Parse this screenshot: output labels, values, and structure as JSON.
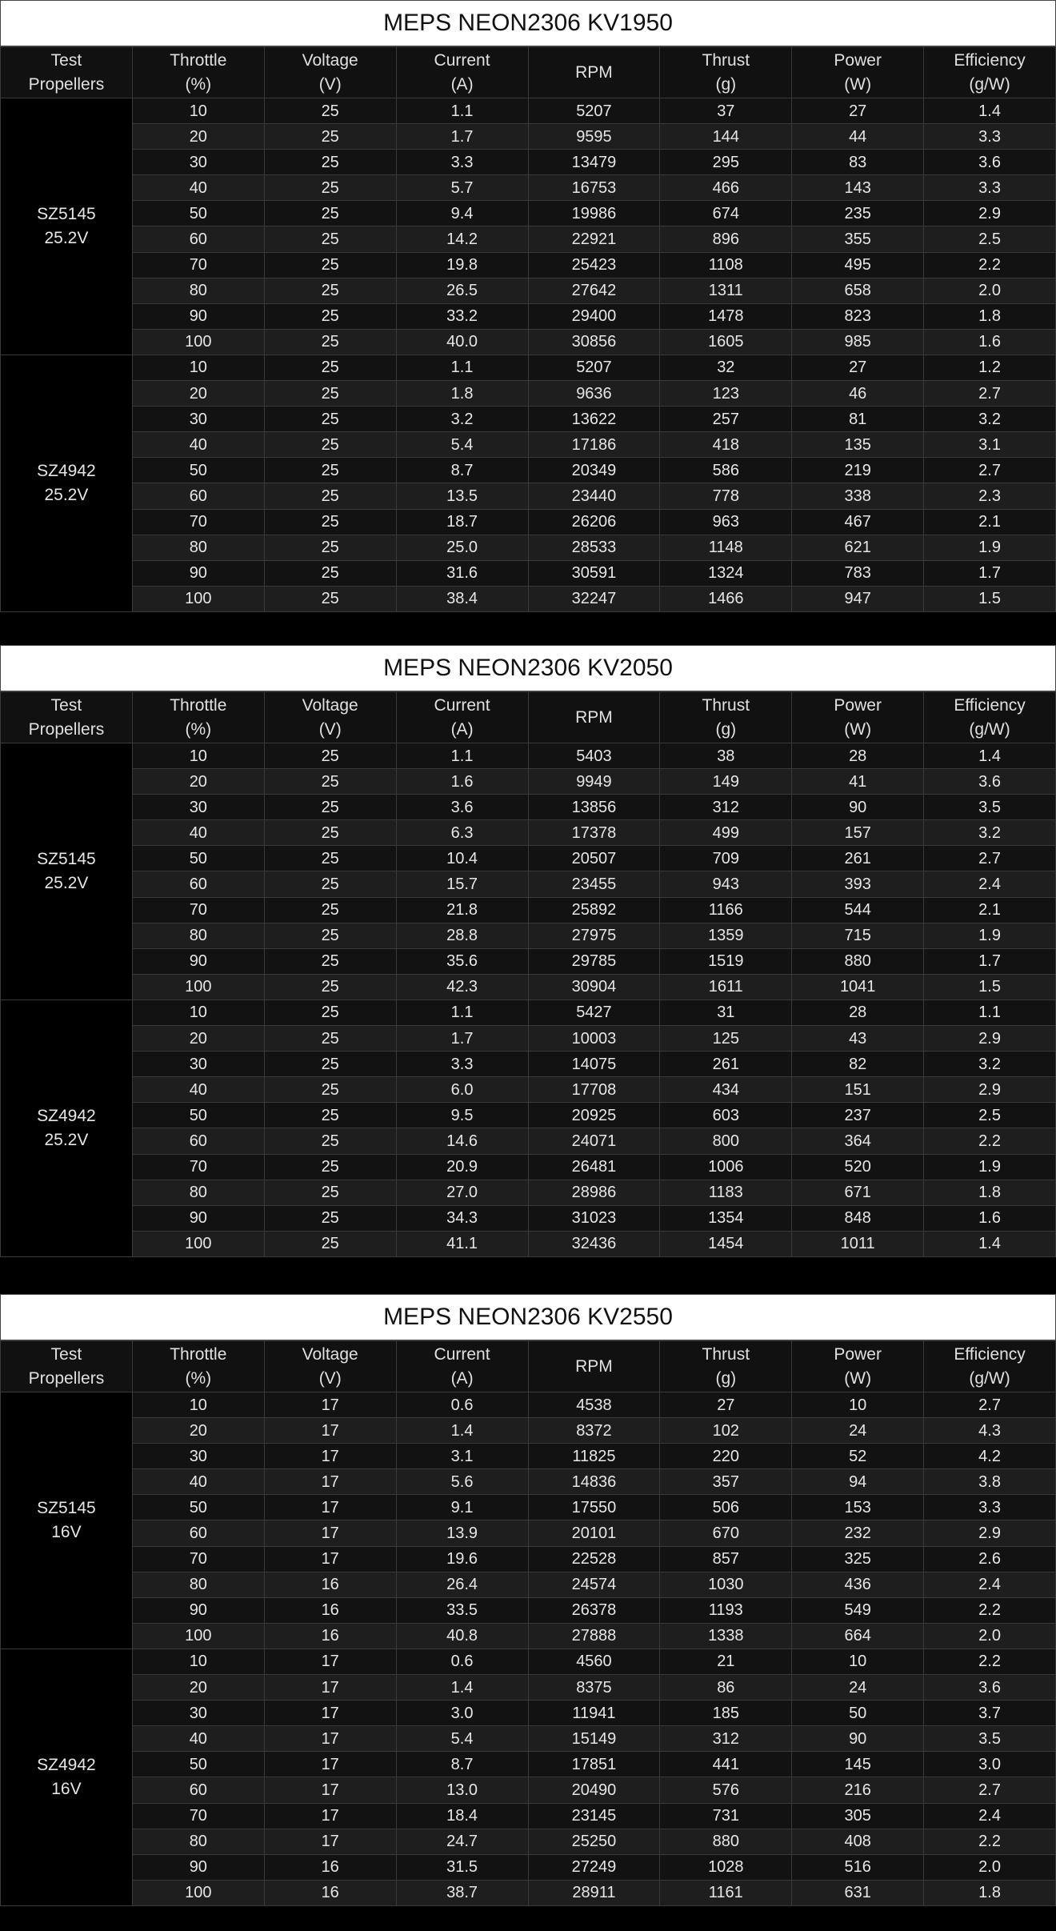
{
  "headers": [
    [
      "Test",
      "Propellers"
    ],
    [
      "Throttle",
      "(%)"
    ],
    [
      "Voltage",
      "(V)"
    ],
    [
      "Current",
      "(A)"
    ],
    [
      "RPM",
      ""
    ],
    [
      "Thrust",
      "(g)"
    ],
    [
      "Power",
      "(W)"
    ],
    [
      "Efficiency",
      "(g/W)"
    ]
  ],
  "tables": [
    {
      "title": "MEPS NEON2306 KV1950",
      "groups": [
        {
          "prop": [
            "SZ5145",
            "25.2V"
          ],
          "rows": [
            [
              "10",
              "25",
              "1.1",
              "5207",
              "37",
              "27",
              "1.4"
            ],
            [
              "20",
              "25",
              "1.7",
              "9595",
              "144",
              "44",
              "3.3"
            ],
            [
              "30",
              "25",
              "3.3",
              "13479",
              "295",
              "83",
              "3.6"
            ],
            [
              "40",
              "25",
              "5.7",
              "16753",
              "466",
              "143",
              "3.3"
            ],
            [
              "50",
              "25",
              "9.4",
              "19986",
              "674",
              "235",
              "2.9"
            ],
            [
              "60",
              "25",
              "14.2",
              "22921",
              "896",
              "355",
              "2.5"
            ],
            [
              "70",
              "25",
              "19.8",
              "25423",
              "1108",
              "495",
              "2.2"
            ],
            [
              "80",
              "25",
              "26.5",
              "27642",
              "1311",
              "658",
              "2.0"
            ],
            [
              "90",
              "25",
              "33.2",
              "29400",
              "1478",
              "823",
              "1.8"
            ],
            [
              "100",
              "25",
              "40.0",
              "30856",
              "1605",
              "985",
              "1.6"
            ]
          ]
        },
        {
          "prop": [
            "SZ4942",
            "25.2V"
          ],
          "rows": [
            [
              "10",
              "25",
              "1.1",
              "5207",
              "32",
              "27",
              "1.2"
            ],
            [
              "20",
              "25",
              "1.8",
              "9636",
              "123",
              "46",
              "2.7"
            ],
            [
              "30",
              "25",
              "3.2",
              "13622",
              "257",
              "81",
              "3.2"
            ],
            [
              "40",
              "25",
              "5.4",
              "17186",
              "418",
              "135",
              "3.1"
            ],
            [
              "50",
              "25",
              "8.7",
              "20349",
              "586",
              "219",
              "2.7"
            ],
            [
              "60",
              "25",
              "13.5",
              "23440",
              "778",
              "338",
              "2.3"
            ],
            [
              "70",
              "25",
              "18.7",
              "26206",
              "963",
              "467",
              "2.1"
            ],
            [
              "80",
              "25",
              "25.0",
              "28533",
              "1148",
              "621",
              "1.9"
            ],
            [
              "90",
              "25",
              "31.6",
              "30591",
              "1324",
              "783",
              "1.7"
            ],
            [
              "100",
              "25",
              "38.4",
              "32247",
              "1466",
              "947",
              "1.5"
            ]
          ]
        }
      ]
    },
    {
      "title": "MEPS NEON2306 KV2050",
      "groups": [
        {
          "prop": [
            "SZ5145",
            "25.2V"
          ],
          "rows": [
            [
              "10",
              "25",
              "1.1",
              "5403",
              "38",
              "28",
              "1.4"
            ],
            [
              "20",
              "25",
              "1.6",
              "9949",
              "149",
              "41",
              "3.6"
            ],
            [
              "30",
              "25",
              "3.6",
              "13856",
              "312",
              "90",
              "3.5"
            ],
            [
              "40",
              "25",
              "6.3",
              "17378",
              "499",
              "157",
              "3.2"
            ],
            [
              "50",
              "25",
              "10.4",
              "20507",
              "709",
              "261",
              "2.7"
            ],
            [
              "60",
              "25",
              "15.7",
              "23455",
              "943",
              "393",
              "2.4"
            ],
            [
              "70",
              "25",
              "21.8",
              "25892",
              "1166",
              "544",
              "2.1"
            ],
            [
              "80",
              "25",
              "28.8",
              "27975",
              "1359",
              "715",
              "1.9"
            ],
            [
              "90",
              "25",
              "35.6",
              "29785",
              "1519",
              "880",
              "1.7"
            ],
            [
              "100",
              "25",
              "42.3",
              "30904",
              "1611",
              "1041",
              "1.5"
            ]
          ]
        },
        {
          "prop": [
            "SZ4942",
            "25.2V"
          ],
          "rows": [
            [
              "10",
              "25",
              "1.1",
              "5427",
              "31",
              "28",
              "1.1"
            ],
            [
              "20",
              "25",
              "1.7",
              "10003",
              "125",
              "43",
              "2.9"
            ],
            [
              "30",
              "25",
              "3.3",
              "14075",
              "261",
              "82",
              "3.2"
            ],
            [
              "40",
              "25",
              "6.0",
              "17708",
              "434",
              "151",
              "2.9"
            ],
            [
              "50",
              "25",
              "9.5",
              "20925",
              "603",
              "237",
              "2.5"
            ],
            [
              "60",
              "25",
              "14.6",
              "24071",
              "800",
              "364",
              "2.2"
            ],
            [
              "70",
              "25",
              "20.9",
              "26481",
              "1006",
              "520",
              "1.9"
            ],
            [
              "80",
              "25",
              "27.0",
              "28986",
              "1183",
              "671",
              "1.8"
            ],
            [
              "90",
              "25",
              "34.3",
              "31023",
              "1354",
              "848",
              "1.6"
            ],
            [
              "100",
              "25",
              "41.1",
              "32436",
              "1454",
              "1011",
              "1.4"
            ]
          ]
        }
      ]
    },
    {
      "title": "MEPS NEON2306 KV2550",
      "groups": [
        {
          "prop": [
            "SZ5145",
            "16V"
          ],
          "rows": [
            [
              "10",
              "17",
              "0.6",
              "4538",
              "27",
              "10",
              "2.7"
            ],
            [
              "20",
              "17",
              "1.4",
              "8372",
              "102",
              "24",
              "4.3"
            ],
            [
              "30",
              "17",
              "3.1",
              "11825",
              "220",
              "52",
              "4.2"
            ],
            [
              "40",
              "17",
              "5.6",
              "14836",
              "357",
              "94",
              "3.8"
            ],
            [
              "50",
              "17",
              "9.1",
              "17550",
              "506",
              "153",
              "3.3"
            ],
            [
              "60",
              "17",
              "13.9",
              "20101",
              "670",
              "232",
              "2.9"
            ],
            [
              "70",
              "17",
              "19.6",
              "22528",
              "857",
              "325",
              "2.6"
            ],
            [
              "80",
              "16",
              "26.4",
              "24574",
              "1030",
              "436",
              "2.4"
            ],
            [
              "90",
              "16",
              "33.5",
              "26378",
              "1193",
              "549",
              "2.2"
            ],
            [
              "100",
              "16",
              "40.8",
              "27888",
              "1338",
              "664",
              "2.0"
            ]
          ]
        },
        {
          "prop": [
            "SZ4942",
            "16V"
          ],
          "rows": [
            [
              "10",
              "17",
              "0.6",
              "4560",
              "21",
              "10",
              "2.2"
            ],
            [
              "20",
              "17",
              "1.4",
              "8375",
              "86",
              "24",
              "3.6"
            ],
            [
              "30",
              "17",
              "3.0",
              "11941",
              "185",
              "50",
              "3.7"
            ],
            [
              "40",
              "17",
              "5.4",
              "15149",
              "312",
              "90",
              "3.5"
            ],
            [
              "50",
              "17",
              "8.7",
              "17851",
              "441",
              "145",
              "3.0"
            ],
            [
              "60",
              "17",
              "13.0",
              "20490",
              "576",
              "216",
              "2.7"
            ],
            [
              "70",
              "17",
              "18.4",
              "23145",
              "731",
              "305",
              "2.4"
            ],
            [
              "80",
              "17",
              "24.7",
              "25250",
              "880",
              "408",
              "2.2"
            ],
            [
              "90",
              "16",
              "31.5",
              "27249",
              "1028",
              "516",
              "2.0"
            ],
            [
              "100",
              "16",
              "38.7",
              "28911",
              "1161",
              "631",
              "1.8"
            ]
          ]
        }
      ]
    }
  ]
}
